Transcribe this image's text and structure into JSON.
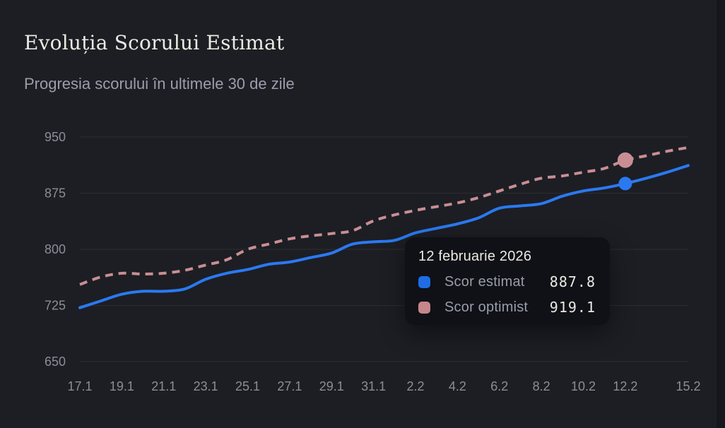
{
  "page": {
    "title": "Evoluția Scorului Estimat",
    "subtitle": "Progresia scorului în ultimele 30 de zile"
  },
  "colors": {
    "background": "#1c1e24",
    "grid_line": "#2b2d33",
    "axis_label": "#8b8e97",
    "estimated_line": "#2b79f0",
    "optimistic_line": "#c98e93",
    "tooltip_background": "#0f1116",
    "tooltip_title": "#ebe8e1",
    "tooltip_label": "#989da9",
    "estimated_swatch": "#1e6ce6",
    "optimistic_swatch": "#c5868c"
  },
  "tooltip": {
    "date": "12 februarie 2026",
    "rows": [
      {
        "label": "Scor estimat",
        "value": "887.8",
        "swatch": "estimated-blue"
      },
      {
        "label": "Scor optimist",
        "value": "919.1",
        "swatch": "optimistic-rose"
      }
    ]
  },
  "chart_data": {
    "type": "line",
    "title": "Evoluția Scorului Estimat",
    "subtitle": "Progresia scorului în ultimele 30 de zile",
    "x": [
      "17.1",
      "18.1",
      "19.1",
      "20.1",
      "21.1",
      "22.1",
      "23.1",
      "24.1",
      "25.1",
      "26.1",
      "27.1",
      "28.1",
      "29.1",
      "30.1",
      "31.1",
      "1.2",
      "2.2",
      "3.2",
      "4.2",
      "5.2",
      "6.2",
      "7.2",
      "8.2",
      "9.2",
      "10.2",
      "11.2",
      "12.2",
      "13.2",
      "14.2",
      "15.2"
    ],
    "series": [
      {
        "name": "Scor estimat",
        "style": "solid",
        "color": "#2b79f0",
        "dot_radius": 9.5,
        "values": [
          722,
          731,
          740,
          744,
          744,
          747,
          760,
          768,
          773,
          780,
          783,
          789,
          795,
          807,
          810,
          812,
          822,
          828,
          834,
          842,
          855,
          858,
          861,
          871,
          878,
          882,
          887.8,
          895,
          903,
          912
        ]
      },
      {
        "name": "Scor optimist",
        "style": "dashed",
        "color": "#c98e93",
        "dot_radius": 11,
        "values": [
          753,
          763,
          768,
          767,
          768,
          772,
          779,
          786,
          800,
          807,
          814,
          818,
          821,
          825,
          838,
          846,
          852,
          857,
          862,
          869,
          878,
          887,
          895,
          898,
          903,
          908,
          919.1,
          925,
          931,
          936
        ]
      }
    ],
    "highlight_index": 26,
    "highlight_x_label": "12.2",
    "y_ticks": [
      650,
      725,
      800,
      875,
      950
    ],
    "ylim": [
      650,
      950
    ],
    "x_ticks": [
      {
        "i": 0,
        "label": "17.1"
      },
      {
        "i": 2,
        "label": "19.1"
      },
      {
        "i": 4,
        "label": "21.1"
      },
      {
        "i": 6,
        "label": "23.1"
      },
      {
        "i": 8,
        "label": "25.1"
      },
      {
        "i": 10,
        "label": "27.1"
      },
      {
        "i": 12,
        "label": "29.1"
      },
      {
        "i": 14,
        "label": "31.1"
      },
      {
        "i": 16,
        "label": "2.2"
      },
      {
        "i": 18,
        "label": "4.2"
      },
      {
        "i": 20,
        "label": "6.2"
      },
      {
        "i": 22,
        "label": "8.2"
      },
      {
        "i": 24,
        "label": "10.2"
      },
      {
        "i": 26,
        "label": "12.2"
      },
      {
        "i": 29,
        "label": "15.2"
      }
    ],
    "grid": "horizontal-only",
    "legend_position": "tooltip-only"
  }
}
